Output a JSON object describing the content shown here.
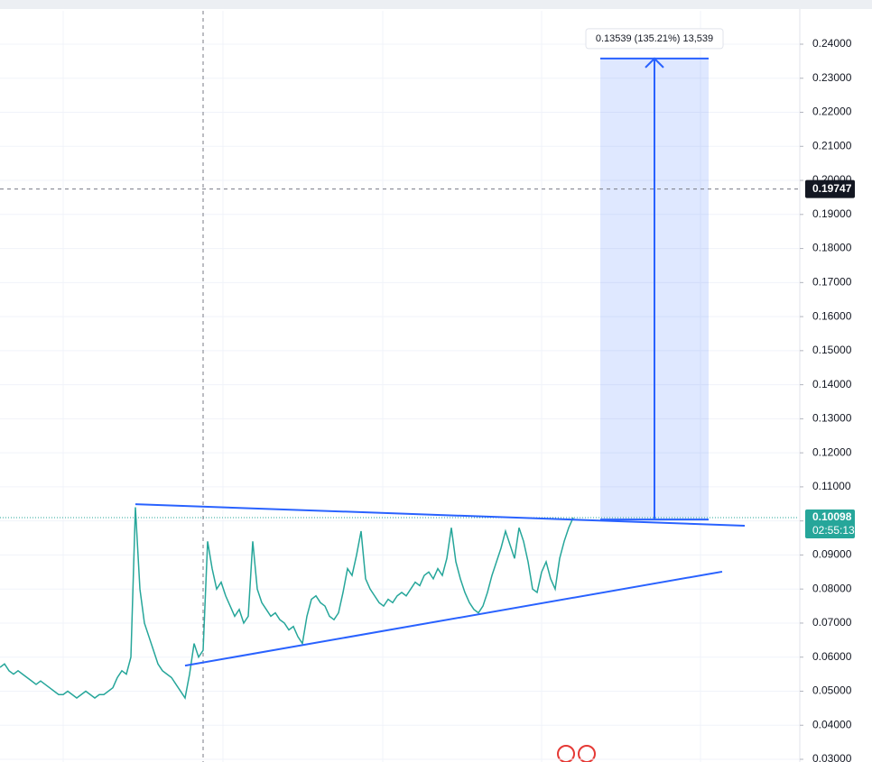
{
  "chart_data": {
    "type": "line",
    "series": [
      {
        "color": "#26a69a",
        "values": [
          0.057,
          0.058,
          0.056,
          0.055,
          0.056,
          0.055,
          0.054,
          0.053,
          0.052,
          0.053,
          0.052,
          0.051,
          0.05,
          0.049,
          0.049,
          0.05,
          0.049,
          0.048,
          0.049,
          0.05,
          0.049,
          0.048,
          0.049,
          0.049,
          0.05,
          0.051,
          0.054,
          0.056,
          0.055,
          0.06,
          0.104,
          0.08,
          0.07,
          0.066,
          0.062,
          0.058,
          0.056,
          0.055,
          0.054,
          0.052,
          0.05,
          0.048,
          0.055,
          0.064,
          0.06,
          0.062,
          0.094,
          0.086,
          0.08,
          0.082,
          0.078,
          0.075,
          0.072,
          0.074,
          0.07,
          0.072,
          0.094,
          0.08,
          0.076,
          0.074,
          0.072,
          0.073,
          0.071,
          0.07,
          0.068,
          0.069,
          0.066,
          0.064,
          0.072,
          0.077,
          0.078,
          0.076,
          0.075,
          0.072,
          0.071,
          0.073,
          0.079,
          0.086,
          0.084,
          0.09,
          0.097,
          0.083,
          0.08,
          0.078,
          0.076,
          0.075,
          0.077,
          0.076,
          0.078,
          0.079,
          0.078,
          0.08,
          0.082,
          0.081,
          0.084,
          0.085,
          0.083,
          0.086,
          0.084,
          0.089,
          0.098,
          0.088,
          0.083,
          0.079,
          0.076,
          0.074,
          0.073,
          0.075,
          0.079,
          0.084,
          0.088,
          0.092,
          0.097,
          0.093,
          0.089,
          0.098,
          0.094,
          0.088,
          0.08,
          0.079,
          0.085,
          0.088,
          0.083,
          0.08,
          0.089,
          0.094,
          0.098,
          0.101
        ]
      }
    ],
    "xlim": [
      0,
      177
    ],
    "ylim": [
      0.03,
      0.24
    ],
    "yticks": [
      {
        "value": 0.03,
        "label": "0.03000"
      },
      {
        "value": 0.04,
        "label": "0.04000"
      },
      {
        "value": 0.05,
        "label": "0.05000"
      },
      {
        "value": 0.06,
        "label": "0.06000"
      },
      {
        "value": 0.07,
        "label": "0.07000"
      },
      {
        "value": 0.08,
        "label": "0.08000"
      },
      {
        "value": 0.09,
        "label": "0.09000"
      },
      {
        "value": 0.1,
        "label": "0.10000"
      },
      {
        "value": 0.11,
        "label": "0.11000"
      },
      {
        "value": 0.12,
        "label": "0.12000"
      },
      {
        "value": 0.13,
        "label": "0.13000"
      },
      {
        "value": 0.14,
        "label": "0.14000"
      },
      {
        "value": 0.15,
        "label": "0.15000"
      },
      {
        "value": 0.16,
        "label": "0.16000"
      },
      {
        "value": 0.17,
        "label": "0.17000"
      },
      {
        "value": 0.18,
        "label": "0.18000"
      },
      {
        "value": 0.19,
        "label": "0.19000"
      },
      {
        "value": 0.2,
        "label": "0.20000"
      },
      {
        "value": 0.21,
        "label": "0.21000"
      },
      {
        "value": 0.22,
        "label": "0.22000"
      },
      {
        "value": 0.23,
        "label": "0.23000"
      },
      {
        "value": 0.24,
        "label": "0.24000"
      }
    ],
    "grid": true,
    "trendlines": [
      {
        "x": [
          30,
          165
        ],
        "values": [
          0.1049,
          0.0986
        ],
        "color": "#2962ff"
      },
      {
        "x": [
          41,
          160
        ],
        "values": [
          0.0575,
          0.0851
        ],
        "color": "#2962ff"
      }
    ],
    "measure": {
      "x": [
        133,
        157
      ],
      "from": 0.1004,
      "to": 0.2358,
      "label": "0.13539 (135.21%) 13,539"
    },
    "crosshair": {
      "x": 45,
      "value": 0.19747,
      "label": "0.19747"
    },
    "last_price": {
      "value": 0.10098,
      "label": "0.10098",
      "countdown": "02:55:13"
    }
  }
}
